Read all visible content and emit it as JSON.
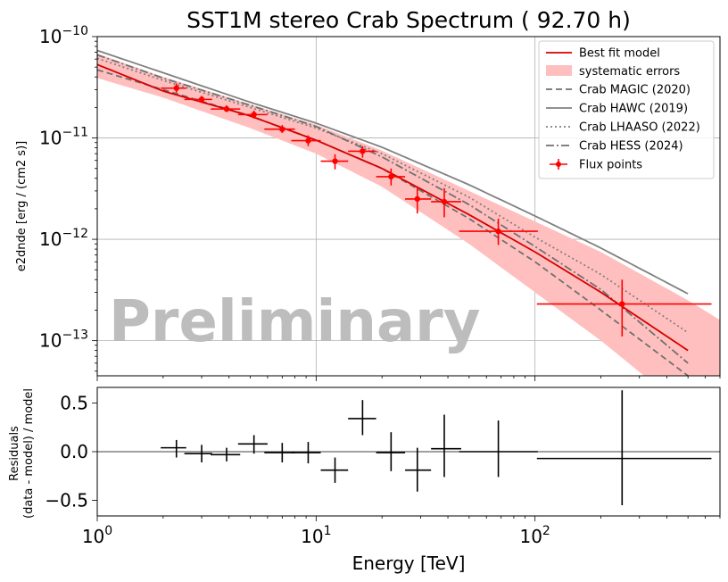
{
  "chart_data": [
    {
      "type": "line",
      "title": "SST1M stereo Crab Spectrum ( 92.70 h)",
      "xlabel": "",
      "ylabel": "e2dnde [erg / (cm2 s)]",
      "xscale": "log",
      "yscale": "log",
      "xlim": [
        1,
        700
      ],
      "ylim": [
        4.5e-14,
        1e-10
      ],
      "grid": true,
      "x_ticks": [
        1,
        10,
        100
      ],
      "y_ticks": [
        {
          "value": 1e-13,
          "base": "10",
          "exp": "−13"
        },
        {
          "value": 1e-12,
          "base": "10",
          "exp": "−12"
        },
        {
          "value": 1e-11,
          "base": "10",
          "exp": "−11"
        },
        {
          "value": 1e-10,
          "base": "10",
          "exp": "−10"
        }
      ],
      "watermark": "Preliminary",
      "legend_position": "top-right",
      "legend": [
        {
          "label": "Best fit model",
          "style": "solid-red"
        },
        {
          "label": "systematic errors",
          "style": "band"
        },
        {
          "label": "Crab MAGIC (2020)",
          "style": "dashed"
        },
        {
          "label": "Crab HAWC (2019)",
          "style": "solid-gray"
        },
        {
          "label": "Crab LHAASO (2022)",
          "style": "dotted"
        },
        {
          "label": "Crab HESS (2024)",
          "style": "dashdot"
        },
        {
          "label": "Flux points",
          "style": "points"
        }
      ],
      "series": [
        {
          "name": "Best fit model",
          "color": "#e41a1c",
          "x": [
            1,
            2,
            5,
            10,
            20,
            50,
            100,
            200,
            500
          ],
          "y": [
            5.3e-11,
            2.9e-11,
            1.65e-11,
            9.5e-12,
            5e-12,
            1.75e-12,
            7.5e-13,
            3e-13,
            8e-14
          ]
        },
        {
          "name": "Crab MAGIC (2020)",
          "color": "#707070",
          "dash": "7,4",
          "x": [
            1,
            2,
            5,
            10,
            20,
            50,
            100,
            200,
            500
          ],
          "y": [
            4.7e-11,
            3e-11,
            1.65e-11,
            9.5e-12,
            5e-12,
            1.6e-12,
            6e-13,
            2e-13,
            4.5e-14
          ]
        },
        {
          "name": "Crab HAWC (2019)",
          "color": "#808080",
          "dash": "",
          "x": [
            1,
            2,
            5,
            10,
            20,
            50,
            100,
            200,
            500
          ],
          "y": [
            7.3e-11,
            4.4e-11,
            2.25e-11,
            1.4e-11,
            8.1e-12,
            3.45e-12,
            1.7e-12,
            8.2e-13,
            2.9e-13
          ]
        },
        {
          "name": "Crab LHAASO (2022)",
          "color": "#808080",
          "dash": "2,3",
          "x": [
            1,
            2,
            5,
            10,
            20,
            50,
            100,
            200,
            500
          ],
          "y": [
            6.1e-11,
            3.7e-11,
            2e-11,
            1.25e-11,
            7e-12,
            2.6e-12,
            1.05e-12,
            4.5e-13,
            1.2e-13
          ]
        },
        {
          "name": "Crab HESS (2024)",
          "color": "#707070",
          "dash": "9,3,2,3",
          "x": [
            1,
            2,
            5,
            10,
            20,
            50,
            100,
            200,
            500
          ],
          "y": [
            6.6e-11,
            3.9e-11,
            2.1e-11,
            1.3e-11,
            6.5e-12,
            2.2e-12,
            8.5e-13,
            3.2e-13,
            6e-14
          ]
        }
      ],
      "band": {
        "name": "systematic errors",
        "color": "#ffbfbf",
        "x": [
          1,
          2,
          5,
          10,
          20,
          50,
          100,
          200,
          500,
          700
        ],
        "lower": [
          3.9e-11,
          2.5e-11,
          1.25e-11,
          7e-12,
          3.3e-12,
          9e-13,
          3e-13,
          1e-13,
          2e-14,
          1.2e-14
        ],
        "upper": [
          6.8e-11,
          4e-11,
          2.15e-11,
          1.35e-11,
          7.5e-12,
          3e-12,
          1.5e-12,
          7.5e-13,
          2.5e-13,
          1.6e-13
        ]
      },
      "flux_points": {
        "color": "#ff0000",
        "x": [
          2.3,
          3.0,
          3.9,
          5.2,
          7.0,
          9.2,
          12.2,
          16.3,
          22.0,
          29.0,
          38.5,
          68.0,
          250.0
        ],
        "x_lo": [
          1.95,
          2.5,
          3.3,
          4.4,
          5.8,
          7.7,
          10.5,
          14.0,
          18.8,
          25.5,
          33.5,
          45.0,
          102.0
        ],
        "x_hi": [
          2.55,
          3.35,
          4.5,
          6.0,
          8.0,
          10.5,
          14.0,
          18.8,
          25.5,
          33.5,
          46.0,
          103.0,
          640.0
        ],
        "y": [
          3.1e-11,
          2.4e-11,
          1.93e-11,
          1.7e-11,
          1.22e-11,
          9.4e-12,
          5.9e-12,
          7.4e-12,
          4.15e-12,
          2.5e-12,
          2.35e-12,
          1.2e-12,
          2.3e-13
        ],
        "y_lo": [
          2.8e-11,
          2.22e-11,
          1.8e-11,
          1.55e-11,
          1.12e-11,
          8.3e-12,
          4.9e-12,
          6.4e-12,
          3.4e-12,
          1.8e-12,
          1.65e-12,
          8.8e-13,
          1.1e-13
        ],
        "y_hi": [
          3.45e-11,
          2.6e-11,
          2.1e-11,
          1.86e-11,
          1.34e-11,
          1.06e-11,
          6.9e-12,
          8.3e-12,
          5e-12,
          3.3e-12,
          3.2e-12,
          1.6e-12,
          4e-13
        ]
      }
    },
    {
      "type": "scatter",
      "title": "",
      "xlabel": "Energy [TeV]",
      "ylabel_line1": "Residuals",
      "ylabel_line2": "(data - model) / model",
      "xscale": "log",
      "xlim": [
        1,
        700
      ],
      "ylim": [
        -0.66,
        0.66
      ],
      "y_ticks": [
        {
          "value": 0.5,
          "label": "0.5"
        },
        {
          "value": 0.0,
          "label": "0.0"
        },
        {
          "value": -0.5,
          "label": "−0.5"
        }
      ],
      "x_ticks": [
        {
          "value": 1,
          "base": "10",
          "exp": "0"
        },
        {
          "value": 10,
          "base": "10",
          "exp": "1"
        },
        {
          "value": 100,
          "base": "10",
          "exp": "2"
        }
      ],
      "zero_line": 0,
      "x": [
        2.3,
        3.0,
        3.9,
        5.2,
        7.0,
        9.2,
        12.2,
        16.3,
        22.0,
        29.0,
        38.5,
        68.0,
        250.0
      ],
      "x_lo": [
        1.95,
        2.5,
        3.3,
        4.4,
        5.8,
        7.7,
        10.5,
        14.0,
        18.8,
        25.5,
        33.5,
        45.0,
        102.0
      ],
      "x_hi": [
        2.55,
        3.35,
        4.5,
        6.0,
        8.0,
        10.5,
        14.0,
        18.8,
        25.5,
        33.5,
        46.0,
        103.0,
        640.0
      ],
      "y": [
        0.04,
        -0.02,
        -0.03,
        0.08,
        -0.01,
        -0.01,
        -0.19,
        0.34,
        -0.01,
        -0.19,
        0.03,
        0.0,
        -0.07
      ],
      "y_lo": [
        -0.06,
        -0.11,
        -0.1,
        -0.02,
        -0.11,
        -0.12,
        -0.32,
        0.17,
        -0.2,
        -0.41,
        -0.26,
        -0.26,
        -0.55
      ],
      "y_hi": [
        0.12,
        0.07,
        0.04,
        0.17,
        0.09,
        0.1,
        -0.06,
        0.53,
        0.2,
        0.04,
        0.38,
        0.32,
        0.63
      ]
    }
  ]
}
